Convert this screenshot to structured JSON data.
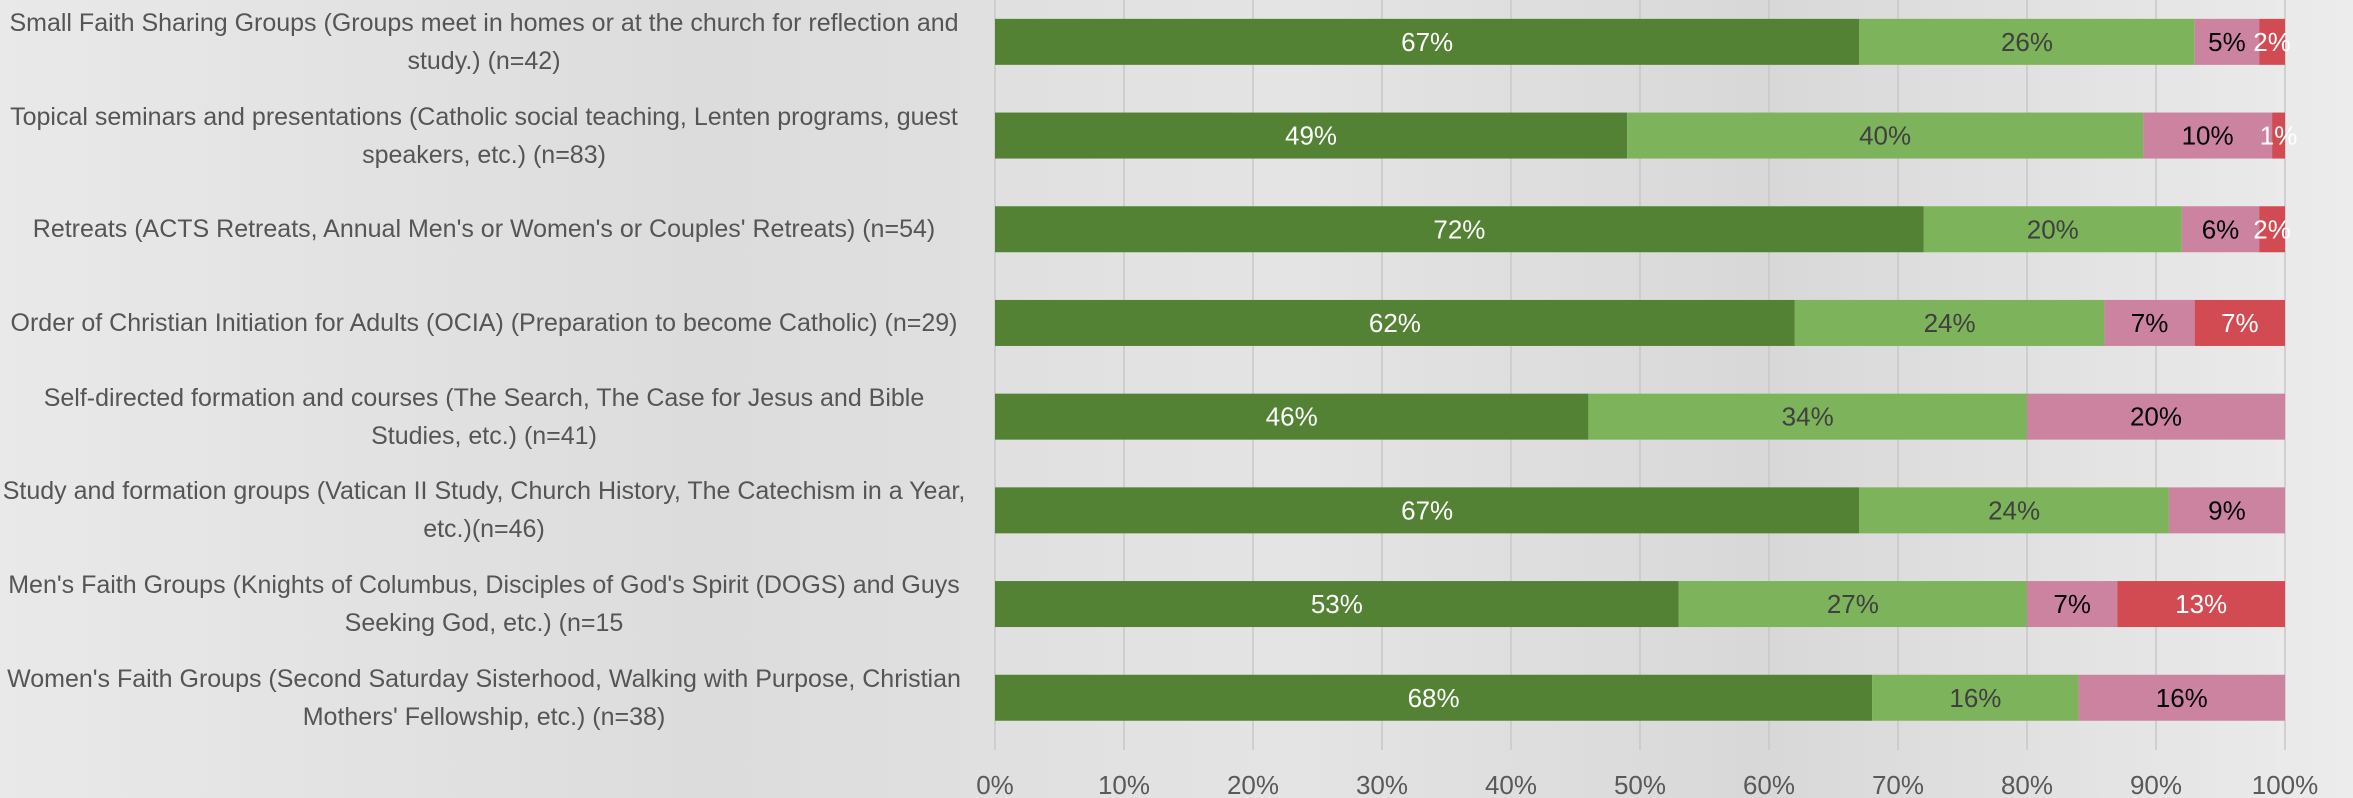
{
  "chart_data": {
    "type": "stacked-bar-horizontal",
    "categories": [
      "Small Faith Sharing Groups (Groups meet in homes or at the church for reflection and study.) (n=42)",
      "Topical seminars and presentations (Catholic social teaching, Lenten programs, guest speakers, etc.) (n=83)",
      "Retreats (ACTS Retreats, Annual Men's or Women's or Couples' Retreats) (n=54)",
      "Order of Christian Initiation for Adults (OCIA) (Preparation to become Catholic) (n=29)",
      "Self-directed formation and courses (The Search, The Case for Jesus and Bible Studies, etc.) (n=41)",
      "Study and formation groups (Vatican II Study, Church History, The Catechism in a Year, etc.)(n=46)",
      "Men's Faith Groups (Knights of Columbus, Disciples of God's Spirit (DOGS) and Guys Seeking God, etc.) (n=15",
      "Women's Faith Groups (Second Saturday Sisterhood, Walking with Purpose, Christian Mothers' Fellowship, etc.) (n=38)"
    ],
    "series": [
      {
        "color": "#548235",
        "label_color": "#ffffff",
        "values": [
          67,
          49,
          72,
          62,
          46,
          67,
          53,
          68
        ],
        "value_labels": [
          "67%",
          "49%",
          "72%",
          "62%",
          "46%",
          "67%",
          "53%",
          "68%"
        ]
      },
      {
        "color": "#7db35a",
        "label_color": "#404040",
        "values": [
          26,
          40,
          20,
          24,
          34,
          24,
          27,
          16
        ],
        "value_labels": [
          "26%",
          "40%",
          "20%",
          "24%",
          "34%",
          "24%",
          "27%",
          "16%"
        ]
      },
      {
        "color": "#cc83a0",
        "label_color": "#000000",
        "values": [
          5,
          10,
          6,
          7,
          20,
          9,
          7,
          16
        ],
        "value_labels": [
          "5%",
          "10%",
          "6%",
          "7%",
          "20%",
          "9%",
          "7%",
          "16%"
        ]
      },
      {
        "color": "#d24b53",
        "label_color": "#ffffff",
        "values": [
          2,
          1,
          2,
          7,
          null,
          null,
          13,
          null
        ],
        "value_labels": [
          "2%",
          "1%",
          "2%",
          "7%",
          null,
          null,
          "13%",
          null
        ]
      }
    ],
    "xlim": [
      0,
      100
    ],
    "xticks": [
      {
        "value": 0,
        "label": "0%"
      },
      {
        "value": 10,
        "label": "10%"
      },
      {
        "value": 20,
        "label": "20%"
      },
      {
        "value": 30,
        "label": "30%"
      },
      {
        "value": 40,
        "label": "40%"
      },
      {
        "value": 50,
        "label": "50%"
      },
      {
        "value": 60,
        "label": "60%"
      },
      {
        "value": 70,
        "label": "70%"
      },
      {
        "value": 80,
        "label": "80%"
      },
      {
        "value": 90,
        "label": "90%"
      },
      {
        "value": 100,
        "label": "100%"
      }
    ],
    "grid": true
  }
}
